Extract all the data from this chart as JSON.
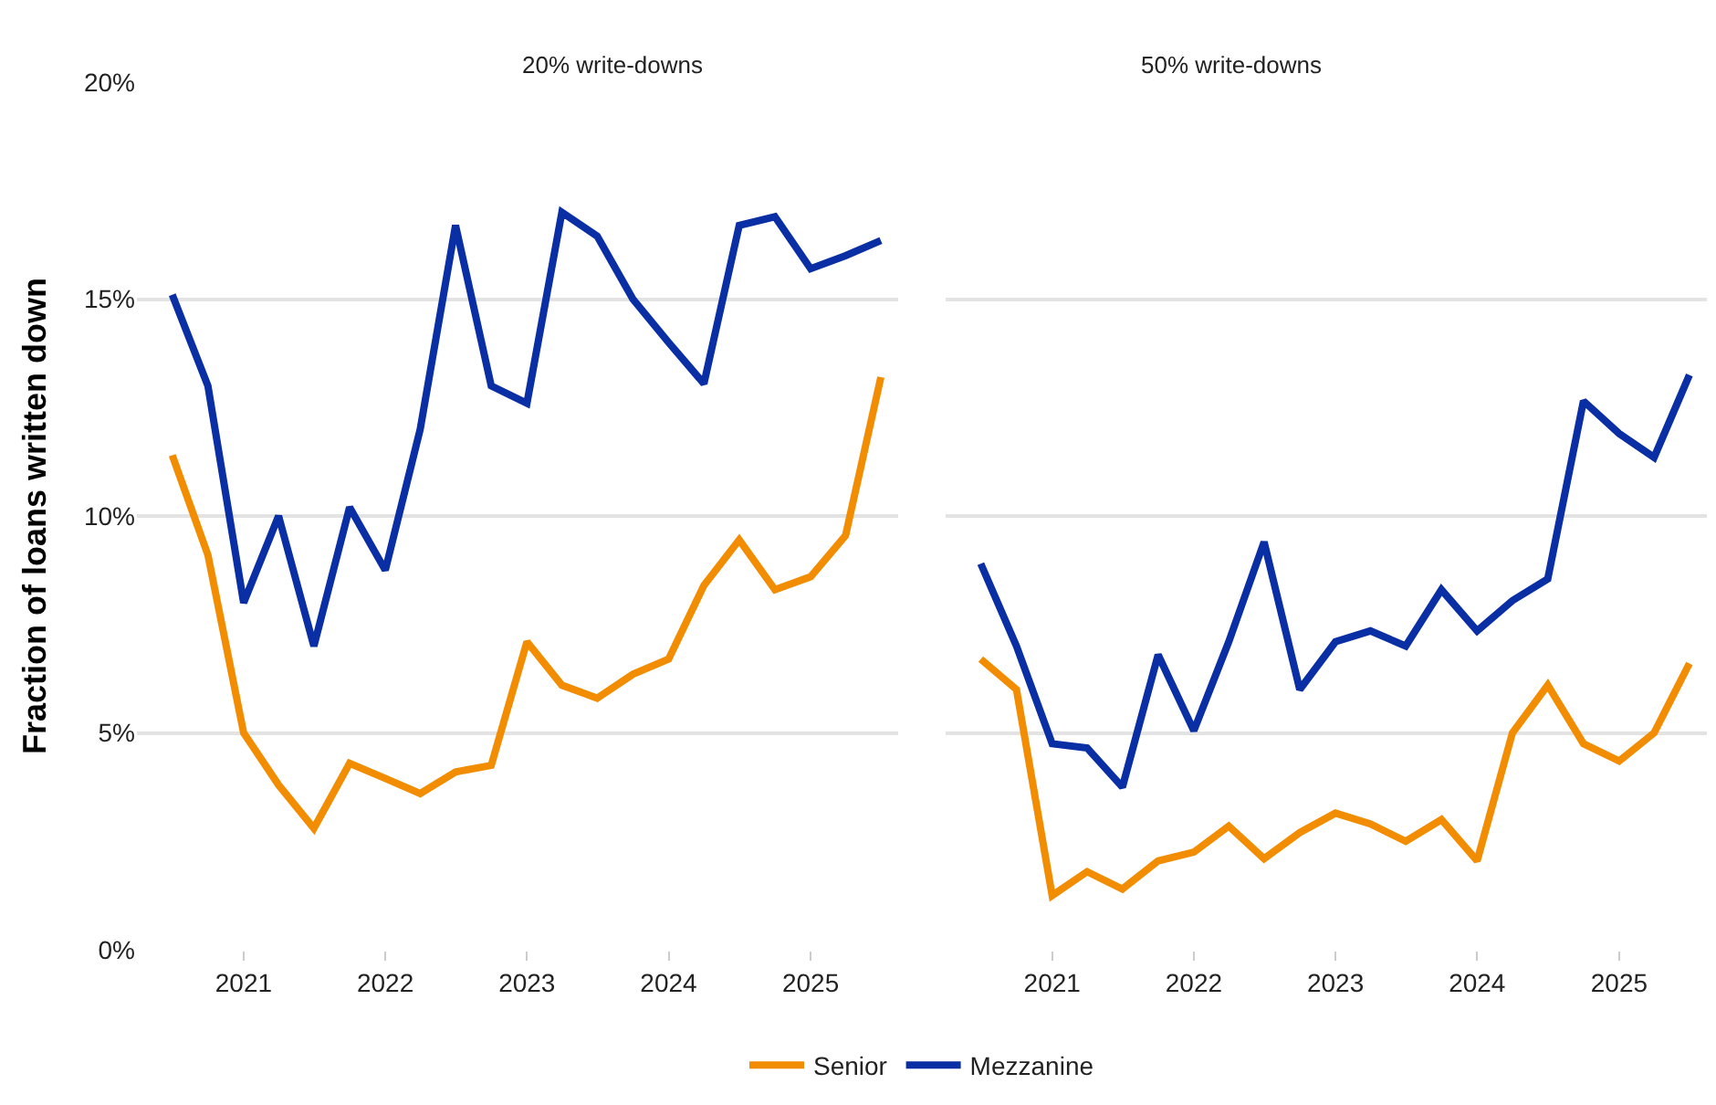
{
  "chart_data": [
    {
      "type": "line",
      "title": "20% write-downs",
      "ylabel": "Fraction of loans written down",
      "x": [
        "2020-07",
        "2020-10",
        "2021-01",
        "2021-04",
        "2021-07",
        "2021-10",
        "2022-01",
        "2022-04",
        "2022-07",
        "2022-10",
        "2023-01",
        "2023-04",
        "2023-07",
        "2023-10",
        "2024-01",
        "2024-04",
        "2024-07",
        "2024-10",
        "2025-01",
        "2025-04",
        "2025-07"
      ],
      "series": [
        {
          "name": "Senior",
          "color": "#f28c00",
          "values": [
            11.4,
            9.1,
            5.0,
            3.8,
            2.8,
            4.3,
            3.95,
            3.6,
            4.1,
            4.25,
            7.1,
            6.1,
            5.8,
            6.35,
            6.7,
            8.4,
            9.45,
            8.3,
            8.6,
            9.55,
            13.2
          ]
        },
        {
          "name": "Mezzanine",
          "color": "#0a2ea4",
          "values": [
            15.1,
            13.0,
            8.0,
            10.0,
            7.0,
            10.2,
            8.75,
            12.0,
            16.7,
            13.0,
            12.6,
            17.0,
            16.45,
            15.0,
            14.0,
            13.05,
            16.7,
            16.9,
            15.7,
            16.0,
            16.35
          ]
        }
      ],
      "xlim": [
        "2020-04",
        "2025-08-15"
      ],
      "xticks": [
        "2021",
        "2022",
        "2023",
        "2024",
        "2025"
      ],
      "ylim": [
        0,
        20
      ],
      "yticks": [
        {
          "value": 0,
          "label": "0%"
        },
        {
          "value": 5,
          "label": "5%"
        },
        {
          "value": 10,
          "label": "10%"
        },
        {
          "value": 15,
          "label": "15%"
        },
        {
          "value": 20,
          "label": "20%"
        }
      ],
      "grid": "y",
      "legend": "bottom",
      "marker": "none",
      "line_style": "solid"
    },
    {
      "type": "line",
      "title": "50% write-downs",
      "x": [
        "2020-07",
        "2020-10",
        "2021-01",
        "2021-04",
        "2021-07",
        "2021-10",
        "2022-01",
        "2022-04",
        "2022-07",
        "2022-10",
        "2023-01",
        "2023-04",
        "2023-07",
        "2023-10",
        "2024-01",
        "2024-04",
        "2024-07",
        "2024-10",
        "2025-01",
        "2025-04",
        "2025-07"
      ],
      "series": [
        {
          "name": "Senior",
          "color": "#f28c00",
          "values": [
            6.7,
            6.0,
            1.25,
            1.8,
            1.4,
            2.05,
            2.25,
            2.85,
            2.1,
            2.7,
            3.15,
            2.9,
            2.5,
            3.0,
            2.05,
            5.0,
            6.1,
            4.75,
            4.35,
            5.0,
            6.6
          ]
        },
        {
          "name": "Mezzanine",
          "color": "#0a2ea4",
          "values": [
            8.9,
            7.0,
            4.75,
            4.65,
            3.75,
            6.8,
            5.05,
            7.1,
            9.4,
            6.0,
            7.1,
            7.35,
            7.0,
            8.3,
            7.35,
            8.05,
            8.55,
            12.65,
            11.9,
            11.35,
            13.25
          ]
        }
      ],
      "xlim": [
        "2020-04",
        "2025-08-15"
      ],
      "xticks": [
        "2021",
        "2022",
        "2023",
        "2024",
        "2025"
      ],
      "ylim": [
        0,
        20
      ],
      "yticks": [
        {
          "value": 0,
          "label": "0%"
        },
        {
          "value": 5,
          "label": "5%"
        },
        {
          "value": 10,
          "label": "10%"
        },
        {
          "value": 15,
          "label": "15%"
        },
        {
          "value": 20,
          "label": "20%"
        }
      ],
      "grid": "y",
      "legend": "bottom",
      "marker": "none",
      "line_style": "solid",
      "tick_labels": "x"
    }
  ]
}
